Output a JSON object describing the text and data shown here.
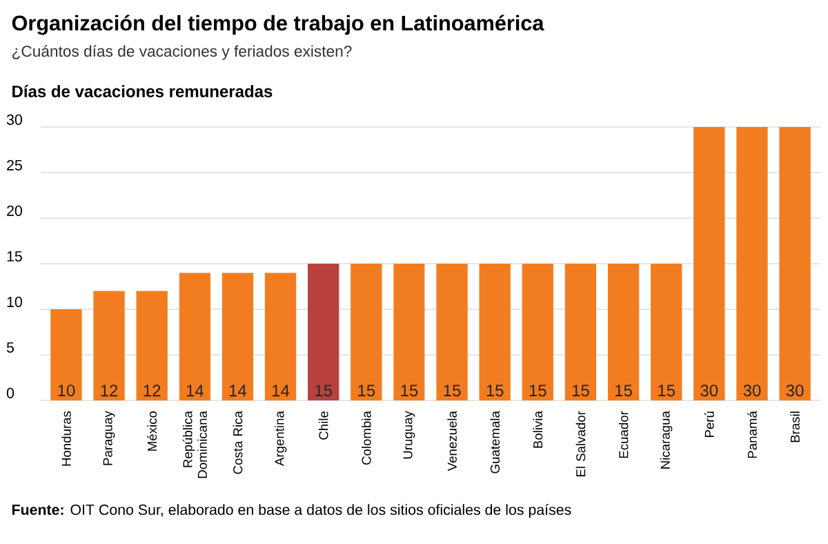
{
  "chart_data": {
    "type": "bar",
    "title": "Organización del tiempo de trabajo en Latinoamérica",
    "subtitle": "¿Cuántos días de vacaciones y feriados existen?",
    "ylabel": "Días de vacaciones remuneradas",
    "categories": [
      "Honduras",
      "Paraguay",
      "México",
      "República Dominicana",
      "Costa Rica",
      "Argentina",
      "Chile",
      "Colombia",
      "Uruguay",
      "Venezuela",
      "Guatemala",
      "Bolivia",
      "El Salvador",
      "Ecuador",
      "Nicaragua",
      "Perú",
      "Panamá",
      "Brasil"
    ],
    "values": [
      10,
      12,
      12,
      14,
      14,
      14,
      15,
      15,
      15,
      15,
      15,
      15,
      15,
      15,
      15,
      30,
      30,
      30
    ],
    "colors": [
      "#f27d20",
      "#f27d20",
      "#f27d20",
      "#f27d20",
      "#f27d20",
      "#f27d20",
      "#b8413d",
      "#f27d20",
      "#f27d20",
      "#f27d20",
      "#f27d20",
      "#f27d20",
      "#f27d20",
      "#f27d20",
      "#f27d20",
      "#f27d20",
      "#f27d20",
      "#f27d20"
    ],
    "ylim": [
      0,
      30
    ],
    "yticks": [
      0,
      5,
      10,
      15,
      20,
      25,
      30
    ],
    "grid": "y",
    "data_labels": true,
    "annotations": [
      "**Fuente:** OIT Cono Sur, elaborado en base a datos de los sitios oficiales de los países"
    ]
  }
}
